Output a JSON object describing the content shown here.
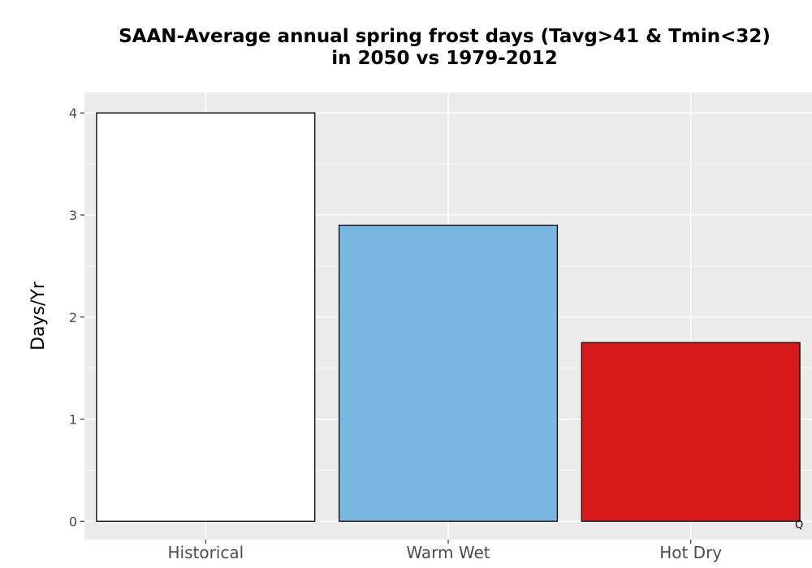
{
  "chart_data": {
    "type": "bar",
    "title_line1": "SAAN-Average annual spring frost days (Tavg>41 & Tmin<32)",
    "title_line2": "in 2050 vs 1979-2012",
    "xlabel": "",
    "ylabel": "Days/Yr",
    "categories": [
      "Historical",
      "Warm Wet",
      "Hot Dry"
    ],
    "values": [
      4.0,
      2.9,
      1.75
    ],
    "colors": [
      "#ffffff",
      "#78b7e0",
      "#d7191c"
    ],
    "ylim": [
      -0.18,
      4.2
    ],
    "yticks": [
      0,
      1,
      2,
      3,
      4
    ],
    "ytick_labels": [
      "0",
      "1",
      "2",
      "3",
      "4"
    ],
    "grid": true,
    "background": "#ebebeb"
  },
  "corner_mark": "Q"
}
